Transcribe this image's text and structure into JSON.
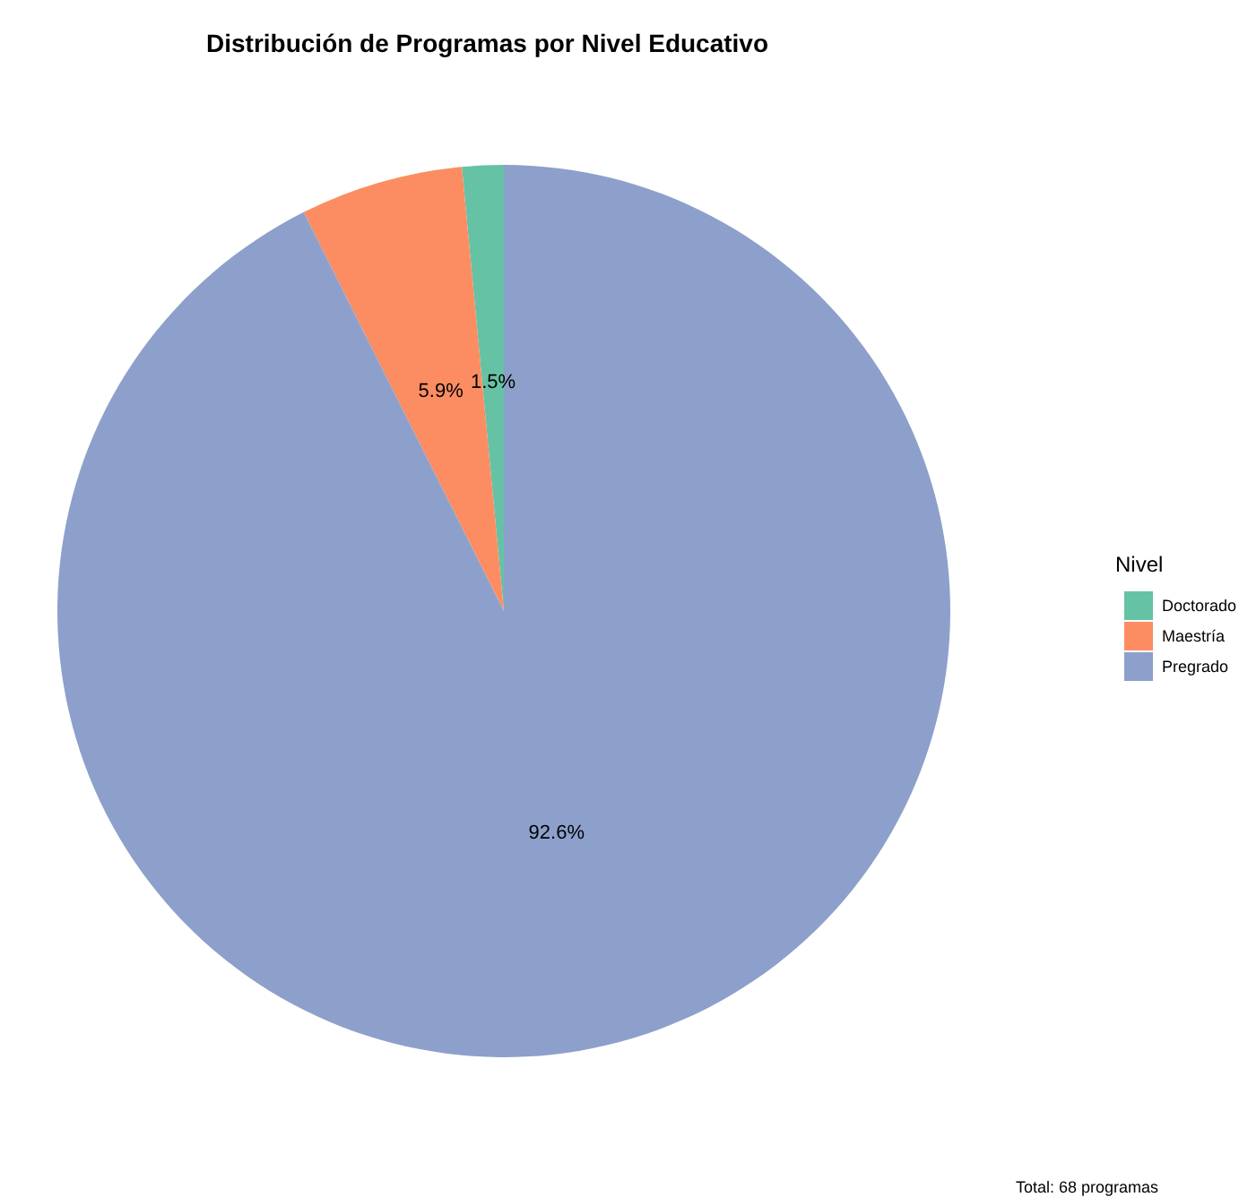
{
  "chart_data": {
    "type": "pie",
    "title": "Distribución de Programas por Nivel Educativo",
    "categories": [
      "Doctorado",
      "Maestría",
      "Pregrado"
    ],
    "values": [
      1.5,
      5.9,
      92.6
    ],
    "colors": [
      "#66c2a5",
      "#fc8d62",
      "#8da0cb"
    ],
    "value_labels": [
      "1.5%",
      "5.9%",
      "92.6%"
    ],
    "legend": "right",
    "legend_title": "Nivel",
    "annotations": [
      "Total: 68 programas"
    ]
  }
}
